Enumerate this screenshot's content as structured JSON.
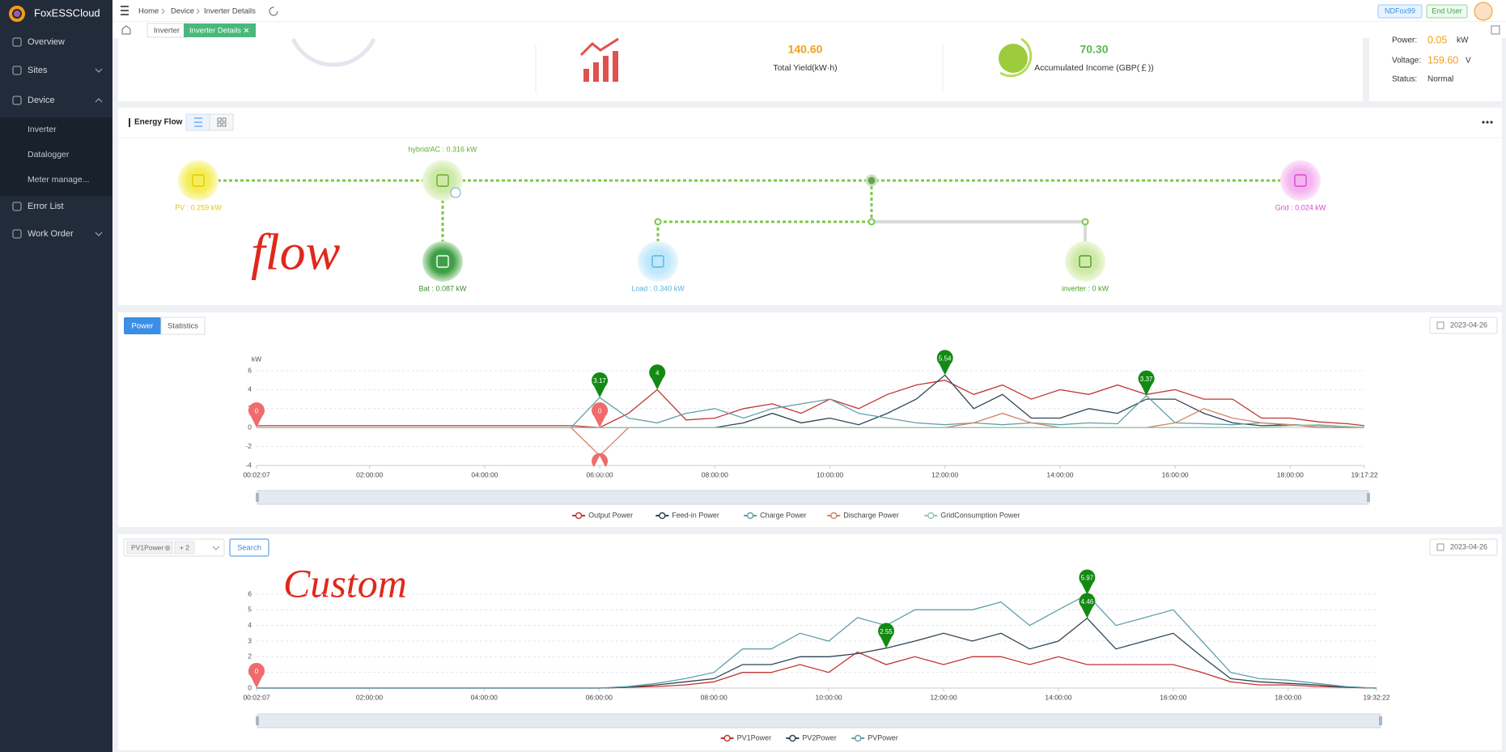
{
  "sidebar": {
    "brand": "FoxESSCloud",
    "menu": [
      "Overview",
      "Sites",
      "Device",
      "Error List",
      "Work Order"
    ],
    "submenu": [
      "Inverter",
      "Datalogger",
      "Meter manage..."
    ]
  },
  "header": {
    "breadcrumb": [
      "Home",
      "Device",
      "Inverter Details"
    ],
    "badges": [
      "NDFox99",
      "End User"
    ]
  },
  "tabs": [
    "Inverter",
    "Inverter Details"
  ],
  "summary": {
    "total_yield": {
      "value": "140.60",
      "label": "Total Yield(kW·h)"
    },
    "income": {
      "value": "70.30",
      "label": "Accumulated Income (GBP(￡))"
    },
    "status": [
      {
        "label": "Power:",
        "value": "0.05",
        "unit": "kW"
      },
      {
        "label": "Voltage:",
        "value": "159.60",
        "unit": "V"
      },
      {
        "label": "Status:",
        "value": "Normal"
      }
    ]
  },
  "energy_flow": {
    "title": "Energy Flow",
    "annotation": "flow",
    "nodes": [
      "PV : 0.259 kW",
      "hybrid/AC : 0.316 kW",
      "Bat : 0.087 kW",
      "Load : 0.340 kW",
      "inverter : 0 kW",
      "Grid : 0.024 kW"
    ]
  },
  "power_panel": {
    "tabs": [
      "Power",
      "Statistics"
    ],
    "date": "2023-04-26"
  },
  "custom_panel": {
    "select": "PV1Power",
    "more": "+ 2",
    "button": "Search",
    "date": "2023-04-26",
    "annotation": "Custom"
  },
  "chart_data": [
    {
      "type": "line",
      "y_label": "kW",
      "grid": true,
      "x": [
        "00:02:07",
        "00:30:00",
        "01:00:00",
        "01:30:00",
        "02:00:00",
        "02:30:00",
        "03:00:00",
        "03:30:00",
        "04:00:00",
        "04:30:00",
        "05:00:00",
        "05:30:00",
        "06:00:00",
        "06:30:00",
        "07:00:00",
        "07:30:00",
        "08:00:00",
        "08:30:00",
        "09:00:00",
        "09:30:00",
        "10:00:00",
        "10:30:00",
        "11:00:00",
        "11:30:00",
        "12:00:00",
        "12:30:00",
        "13:00:00",
        "13:30:00",
        "14:00:00",
        "14:30:00",
        "15:00:00",
        "15:30:00",
        "16:00:00",
        "16:30:00",
        "17:00:00",
        "17:30:00",
        "18:00:00",
        "18:30:00",
        "19:00:00",
        "19:17:22"
      ],
      "xlim": [
        "00:02:07",
        "19:17:22"
      ],
      "xticks": [
        "00:02:07",
        "02:00:00",
        "04:00:00",
        "06:00:00",
        "08:00:00",
        "10:00:00",
        "12:00:00",
        "14:00:00",
        "16:00:00",
        "18:00:00",
        "19:17:22"
      ],
      "ylim": [
        -4,
        6
      ],
      "yticks": [
        -4,
        -2,
        0,
        2,
        4,
        6
      ],
      "series": [
        {
          "name": "Output Power",
          "color": "#c23531",
          "values": [
            0.2,
            0.2,
            0.2,
            0.2,
            0.2,
            0.2,
            0.2,
            0.2,
            0.2,
            0.2,
            0.2,
            0.2,
            0,
            1.5,
            4,
            0.8,
            1,
            2,
            2.5,
            1.5,
            3,
            2,
            3.5,
            4.5,
            5,
            3.5,
            4.5,
            3,
            4,
            3.5,
            4.5,
            3.5,
            4,
            3,
            3,
            1,
            1,
            0.6,
            0.4,
            0.2
          ]
        },
        {
          "name": "Feed-in Power",
          "color": "#2f4554",
          "values": [
            0,
            0,
            0,
            0,
            0,
            0,
            0,
            0,
            0,
            0,
            0,
            0,
            0,
            0,
            0,
            0,
            0,
            0.5,
            1.5,
            0.5,
            1,
            0.3,
            1.5,
            3,
            5.54,
            2,
            3.5,
            1,
            1,
            2,
            1.5,
            3,
            3,
            1.5,
            0.5,
            0.2,
            0.3,
            0.2,
            0.1,
            0
          ]
        },
        {
          "name": "Charge Power",
          "color": "#61a0a8",
          "values": [
            0,
            0,
            0,
            0,
            0,
            0,
            0,
            0,
            0,
            0,
            0,
            0,
            3.17,
            1,
            0.5,
            1.5,
            2,
            1,
            2,
            2.5,
            3,
            1.5,
            1,
            0.5,
            0.3,
            0.5,
            0.3,
            0.5,
            0.3,
            0.5,
            0.4,
            3.37,
            0.5,
            0.4,
            0.3,
            0.5,
            0.3,
            0.2,
            0.1,
            0
          ]
        },
        {
          "name": "Discharge Power",
          "color": "#d48265",
          "values": [
            0,
            0,
            0,
            0,
            0,
            0,
            0,
            0,
            0,
            0,
            0,
            0,
            -2.96,
            0,
            0,
            0,
            0,
            0,
            0,
            0,
            0,
            0,
            0,
            0,
            0,
            0.5,
            1.5,
            0.5,
            0,
            0,
            0,
            0,
            0.5,
            2,
            1,
            0.5,
            0.3,
            0,
            0,
            0
          ]
        },
        {
          "name": "GridConsumption Power",
          "color": "#91c7ae",
          "values": [
            0,
            0,
            0,
            0,
            0,
            0,
            0,
            0,
            0,
            0,
            0,
            0,
            0,
            0,
            0,
            0,
            0,
            0,
            0,
            0,
            0,
            0,
            0,
            0,
            0,
            0,
            0,
            0,
            0,
            0,
            0,
            0,
            0,
            0,
            0,
            0,
            0.2,
            0.3,
            0.1,
            0
          ]
        }
      ],
      "markers": [
        {
          "x": "00:02:07",
          "value": 0,
          "color": "#f06b6b"
        },
        {
          "x": "06:00:00",
          "value": 0,
          "color": "#f06b6b"
        },
        {
          "x": "06:00:00",
          "value": 3.17,
          "color": "#138a13"
        },
        {
          "x": "07:00:00",
          "value": 4,
          "color": "#138a13"
        },
        {
          "x": "12:00:00",
          "value": 5.54,
          "color": "#138a13"
        },
        {
          "x": "15:30:00",
          "value": 3.37,
          "color": "#138a13"
        },
        {
          "x": "06:00:00",
          "value": -2.96,
          "color": "#f06b6b"
        }
      ]
    },
    {
      "type": "line",
      "grid": true,
      "x": [
        "00:02:07",
        "00:30:00",
        "01:00:00",
        "01:30:00",
        "02:00:00",
        "02:30:00",
        "03:00:00",
        "03:30:00",
        "04:00:00",
        "04:30:00",
        "05:00:00",
        "05:30:00",
        "06:00:00",
        "06:30:00",
        "07:00:00",
        "07:30:00",
        "08:00:00",
        "08:30:00",
        "09:00:00",
        "09:30:00",
        "10:00:00",
        "10:30:00",
        "11:00:00",
        "11:30:00",
        "12:00:00",
        "12:30:00",
        "13:00:00",
        "13:30:00",
        "14:00:00",
        "14:30:00",
        "15:00:00",
        "15:30:00",
        "16:00:00",
        "16:30:00",
        "17:00:00",
        "17:30:00",
        "18:00:00",
        "18:30:00",
        "19:00:00",
        "19:30:00",
        "19:32:22"
      ],
      "xlim": [
        "00:02:07",
        "19:32:22"
      ],
      "xticks": [
        "00:02:07",
        "02:00:00",
        "04:00:00",
        "06:00:00",
        "08:00:00",
        "10:00:00",
        "12:00:00",
        "14:00:00",
        "16:00:00",
        "18:00:00",
        "19:32:22"
      ],
      "ylim": [
        0,
        6
      ],
      "yticks": [
        0,
        1,
        2,
        3,
        4,
        5,
        6
      ],
      "series": [
        {
          "name": "PV1Power",
          "color": "#c23531",
          "values": [
            0,
            0,
            0,
            0,
            0,
            0,
            0,
            0,
            0,
            0,
            0,
            0,
            0,
            0.05,
            0.1,
            0.2,
            0.4,
            1,
            1,
            1.5,
            1,
            2.3,
            1.5,
            2,
            1.5,
            2,
            2,
            1.5,
            2,
            1.5,
            1.5,
            1.5,
            1.5,
            1,
            0.4,
            0.2,
            0.2,
            0.1,
            0.05,
            0,
            0
          ]
        },
        {
          "name": "PV2Power",
          "color": "#2f4554",
          "values": [
            0,
            0,
            0,
            0,
            0,
            0,
            0,
            0,
            0,
            0,
            0,
            0,
            0,
            0.05,
            0.2,
            0.4,
            0.6,
            1.5,
            1.5,
            2,
            2,
            2.2,
            2.55,
            3,
            3.5,
            3,
            3.5,
            2.5,
            3,
            4.46,
            2.5,
            3,
            3.5,
            2,
            0.6,
            0.4,
            0.3,
            0.2,
            0.05,
            0,
            0
          ]
        },
        {
          "name": "PVPower",
          "color": "#61a0a8",
          "values": [
            0,
            0,
            0,
            0,
            0,
            0,
            0,
            0,
            0,
            0,
            0,
            0,
            0,
            0.1,
            0.3,
            0.6,
            1,
            2.5,
            2.5,
            3.5,
            3,
            4.5,
            4,
            5,
            5,
            5,
            5.5,
            4,
            5,
            5.97,
            4,
            4.5,
            5,
            3,
            1,
            0.6,
            0.5,
            0.3,
            0.1,
            0,
            0
          ]
        }
      ],
      "markers": [
        {
          "x": "00:02:07",
          "value": 0,
          "color": "#f06b6b"
        },
        {
          "x": "11:00:00",
          "value": 2.55,
          "color": "#138a13"
        },
        {
          "x": "14:30:00",
          "value": 4.46,
          "color": "#138a13"
        },
        {
          "x": "14:30:00",
          "value": 5.97,
          "color": "#138a13"
        }
      ]
    }
  ]
}
